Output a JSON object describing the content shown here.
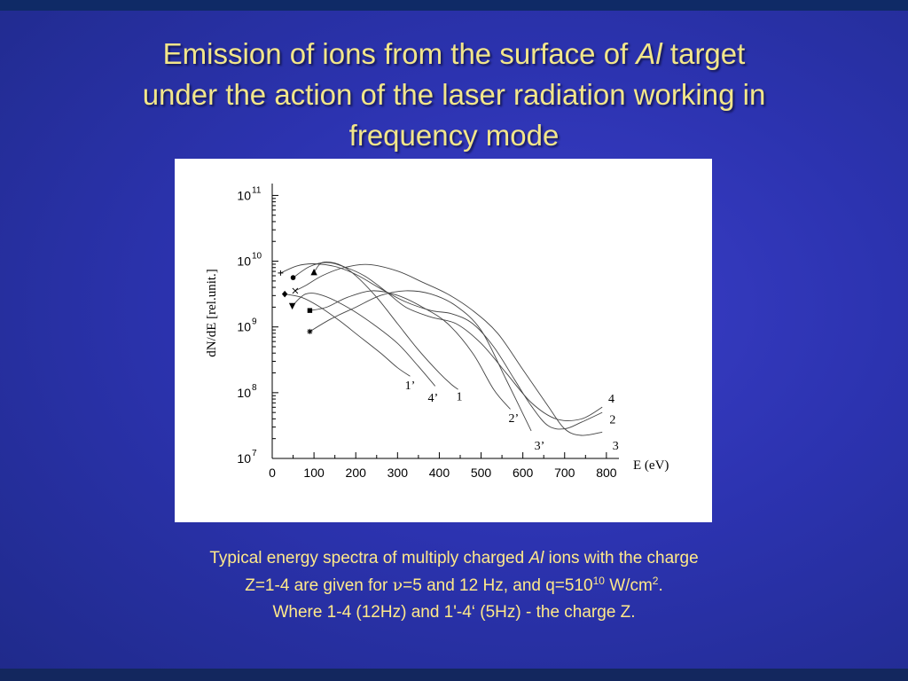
{
  "slide": {
    "title_line1_before": "Emission of ions from the surface of ",
    "title_line1_italic": "Al",
    "title_line1_after": " target",
    "title_line2": "under the action of the laser radiation working in",
    "title_line3": "frequency mode"
  },
  "caption": {
    "line1_before": "Typical energy spectra of multiply charged ",
    "line1_italic": "Al",
    "line1_after": " ions with the charge",
    "line2_before": "Z=1-4 are given for ",
    "line2_nu": "ν",
    "line2_mid": "=5 and 12 Hz, and  q=510",
    "line2_sup": "10",
    "line2_unit": " W/cm",
    "line2_unit_sup": "2",
    "line2_end": ".",
    "line3": "Where  1-4 (12Hz)  and 1'-4‘ (5Hz) - the charge  Z."
  },
  "colors": {
    "title": "#f2e68a",
    "caption": "#ffe98a",
    "background": "#2c33b0",
    "curve": "#444444"
  },
  "chart_data": {
    "type": "line",
    "title": "",
    "xlabel": "E (eV)",
    "ylabel": "dN/dE [rel.unit.]",
    "xlim": [
      0,
      830
    ],
    "ylim": [
      7,
      11.1
    ],
    "y_scale": "log",
    "x_ticks": [
      "0",
      "100",
      "200",
      "300",
      "400",
      "500",
      "600",
      "700",
      "800"
    ],
    "x_tick_values": [
      0,
      100,
      200,
      300,
      400,
      500,
      600,
      700,
      800
    ],
    "y_ticks": [
      {
        "base": "10",
        "exp": "7",
        "value": 7
      },
      {
        "base": "10",
        "exp": "8",
        "value": 8
      },
      {
        "base": "10",
        "exp": "9",
        "value": 9
      },
      {
        "base": "10",
        "exp": "10",
        "value": 10
      },
      {
        "base": "10",
        "exp": "11",
        "value": 11
      }
    ],
    "series": [
      {
        "name": "1",
        "label_at": [
          448,
          7.95
        ],
        "marker": "triangle",
        "marker_at": [
          100,
          9.83
        ],
        "x": [
          100,
          120,
          160,
          200,
          250,
          300,
          350,
          400,
          430,
          445
        ],
        "log10_y": [
          9.83,
          9.98,
          9.95,
          9.78,
          9.45,
          9.05,
          8.65,
          8.3,
          8.12,
          8.05
        ]
      },
      {
        "name": "2",
        "label_at": [
          815,
          7.6
        ],
        "marker": "plus",
        "marker_at": [
          20,
          9.82
        ],
        "x": [
          20,
          60,
          100,
          150,
          200,
          260,
          320,
          380,
          430,
          480,
          530,
          580,
          620,
          660,
          700,
          740,
          790
        ],
        "log10_y": [
          9.82,
          9.93,
          9.96,
          9.92,
          9.8,
          9.58,
          9.38,
          9.25,
          9.2,
          9.05,
          8.7,
          8.2,
          7.8,
          7.5,
          7.45,
          7.55,
          7.7
        ]
      },
      {
        "name": "3",
        "label_at": [
          822,
          7.2
        ],
        "marker": "cross",
        "marker_at": [
          55,
          9.55
        ],
        "x": [
          55,
          80,
          120,
          170,
          230,
          300,
          360,
          420,
          480,
          540,
          600,
          660,
          700,
          740,
          790
        ],
        "log10_y": [
          9.55,
          9.63,
          9.78,
          9.9,
          9.95,
          9.85,
          9.68,
          9.5,
          9.25,
          8.9,
          8.35,
          7.8,
          7.45,
          7.35,
          7.4
        ]
      },
      {
        "name": "4",
        "label_at": [
          812,
          7.92
        ],
        "marker": "circle",
        "marker_at": [
          50,
          9.75
        ],
        "x": [
          50,
          90,
          130,
          170,
          220,
          270,
          320,
          380,
          440,
          500,
          560,
          620,
          680,
          740,
          790
        ],
        "log10_y": [
          9.75,
          9.92,
          9.98,
          9.92,
          9.78,
          9.55,
          9.3,
          9.15,
          9.05,
          8.75,
          8.3,
          7.85,
          7.6,
          7.6,
          7.78
        ]
      },
      {
        "name": "1’",
        "label_at": [
          330,
          8.12
        ],
        "marker": "diamond",
        "marker_at": [
          30,
          9.5
        ],
        "x": [
          30,
          70,
          110,
          160,
          210,
          260,
          300,
          330
        ],
        "log10_y": [
          9.5,
          9.45,
          9.32,
          9.1,
          8.85,
          8.6,
          8.38,
          8.25
        ]
      },
      {
        "name": "2’",
        "label_at": [
          578,
          7.62
        ],
        "marker": "square",
        "marker_at": [
          90,
          9.25
        ],
        "x": [
          90,
          130,
          180,
          240,
          300,
          360,
          420,
          480,
          530,
          570
        ],
        "log10_y": [
          9.25,
          9.3,
          9.45,
          9.55,
          9.48,
          9.3,
          9.05,
          8.6,
          8.05,
          7.75
        ]
      },
      {
        "name": "3’",
        "label_at": [
          640,
          7.2
        ],
        "marker": "asterisk",
        "marker_at": [
          90,
          8.93
        ],
        "x": [
          90,
          140,
          200,
          260,
          320,
          380,
          440,
          500,
          560,
          620
        ],
        "log10_y": [
          8.93,
          9.12,
          9.3,
          9.48,
          9.55,
          9.5,
          9.32,
          8.95,
          8.2,
          7.42
        ]
      },
      {
        "name": "4’",
        "label_at": [
          385,
          7.93
        ],
        "marker": "triangle-down",
        "marker_at": [
          48,
          9.32
        ],
        "x": [
          48,
          80,
          120,
          180,
          240,
          300,
          350,
          390
        ],
        "log10_y": [
          9.32,
          9.5,
          9.48,
          9.3,
          9.05,
          8.75,
          8.4,
          8.1
        ]
      }
    ]
  }
}
